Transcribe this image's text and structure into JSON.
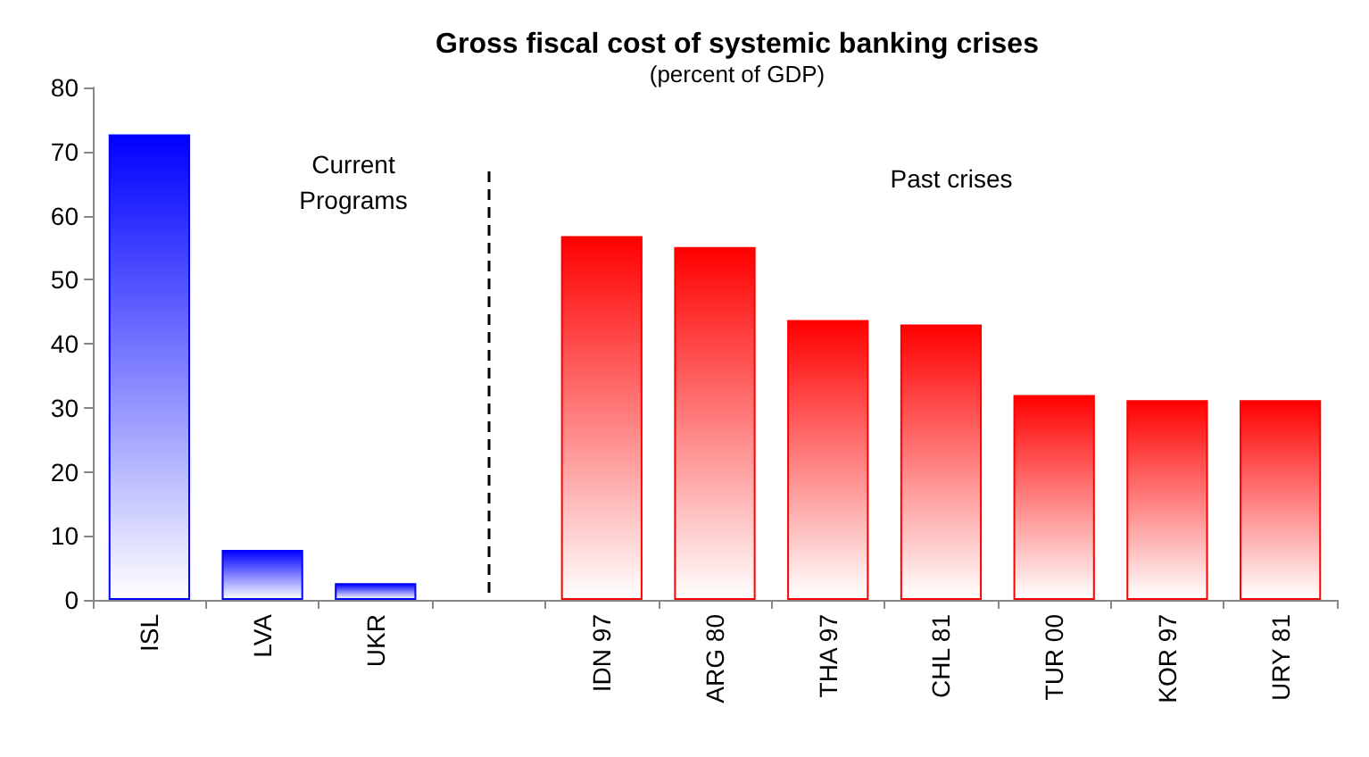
{
  "chart_data": {
    "type": "bar",
    "title": "Gross fiscal cost of systemic banking crises",
    "subtitle": "(percent of GDP)",
    "categories": [
      "ISL",
      "LVA",
      "UKR",
      null,
      "IDN 97",
      "ARG 80",
      "THA 97",
      "CHL 81",
      "TUR 00",
      "KOR 97",
      "URY 81"
    ],
    "values": [
      72.7,
      7.8,
      2.6,
      null,
      56.8,
      55.1,
      43.7,
      43.0,
      32.0,
      31.2,
      31.2
    ],
    "colors": [
      "#0000ff",
      "#0000ff",
      "#0000ff",
      null,
      "#ff0000",
      "#ff0000",
      "#ff0000",
      "#ff0000",
      "#ff0000",
      "#ff0000",
      "#ff0000"
    ],
    "ylim": [
      0,
      80
    ],
    "yticks": [
      0,
      10,
      20,
      30,
      40,
      50,
      60,
      70,
      80
    ],
    "annotations": [
      "Current\nPrograms",
      "Past crises"
    ]
  }
}
